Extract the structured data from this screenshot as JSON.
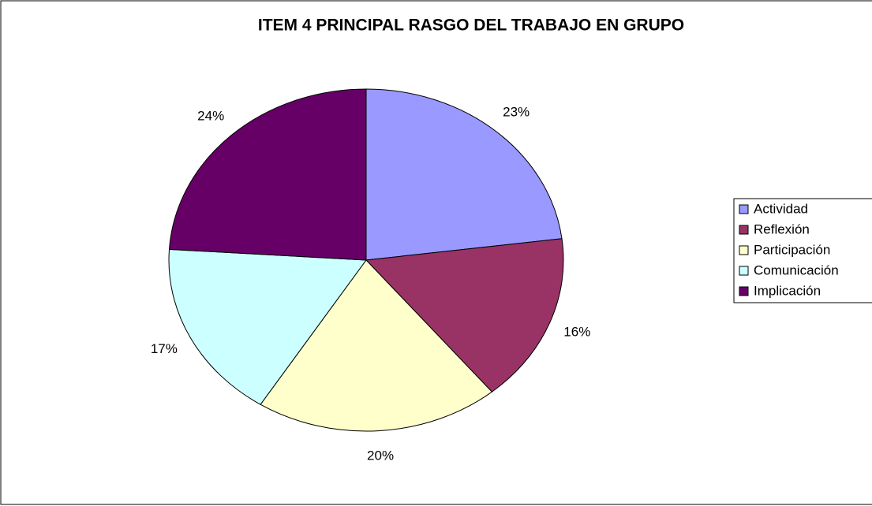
{
  "chart_data": {
    "type": "pie",
    "title": "ITEM 4 PRINCIPAL RASGO DEL TRABAJO EN GRUPO",
    "categories": [
      "Actividad",
      "Reflexión",
      "Participación",
      "Comunicación",
      "Implicación"
    ],
    "values": [
      23,
      16,
      20,
      17,
      24
    ],
    "value_labels": [
      "23%",
      "16%",
      "20%",
      "17%",
      "24%"
    ],
    "colors": [
      "#9999ff",
      "#993366",
      "#ffffcc",
      "#ccffff",
      "#660066"
    ],
    "legend": "right"
  }
}
